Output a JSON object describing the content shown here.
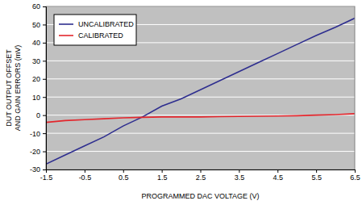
{
  "chart_data": {
    "type": "line",
    "x_label": "PROGRAMMED DAC VOLTAGE (V)",
    "y_label": "DUT OUTPUT OFFSET AND GAIN ERRORS (mV)",
    "x": [
      -1.5,
      -1,
      -0.5,
      0,
      0.5,
      1,
      1.5,
      2,
      2.5,
      3,
      3.5,
      4,
      4.5,
      5,
      5.5,
      6,
      6.5
    ],
    "series": [
      {
        "name": "UNCALIBRATED",
        "color": "#2e2e8f",
        "values": [
          -27,
          -22,
          -17,
          -12,
          -6,
          -1,
          5,
          9,
          14,
          19,
          24,
          29,
          34,
          39,
          44,
          48.5,
          53.5
        ]
      },
      {
        "name": "CALIBRATED",
        "color": "#e3262c",
        "values": [
          -4,
          -3,
          -2.5,
          -2,
          -1.5,
          -1.2,
          -1,
          -1,
          -1,
          -0.8,
          -0.7,
          -0.6,
          -0.5,
          -0.3,
          0,
          0.3,
          0.8
        ]
      }
    ],
    "xlim": [
      -1.5,
      6.5
    ],
    "xticks": [
      -1.5,
      -0.5,
      0.5,
      1.5,
      2.5,
      3.5,
      4.5,
      5.5,
      6.5
    ],
    "ylim": [
      -30,
      60
    ],
    "yticks": [
      -30,
      -20,
      -10,
      0,
      10,
      20,
      30,
      40,
      50,
      60
    ],
    "grid": true,
    "legend": "upper left"
  }
}
